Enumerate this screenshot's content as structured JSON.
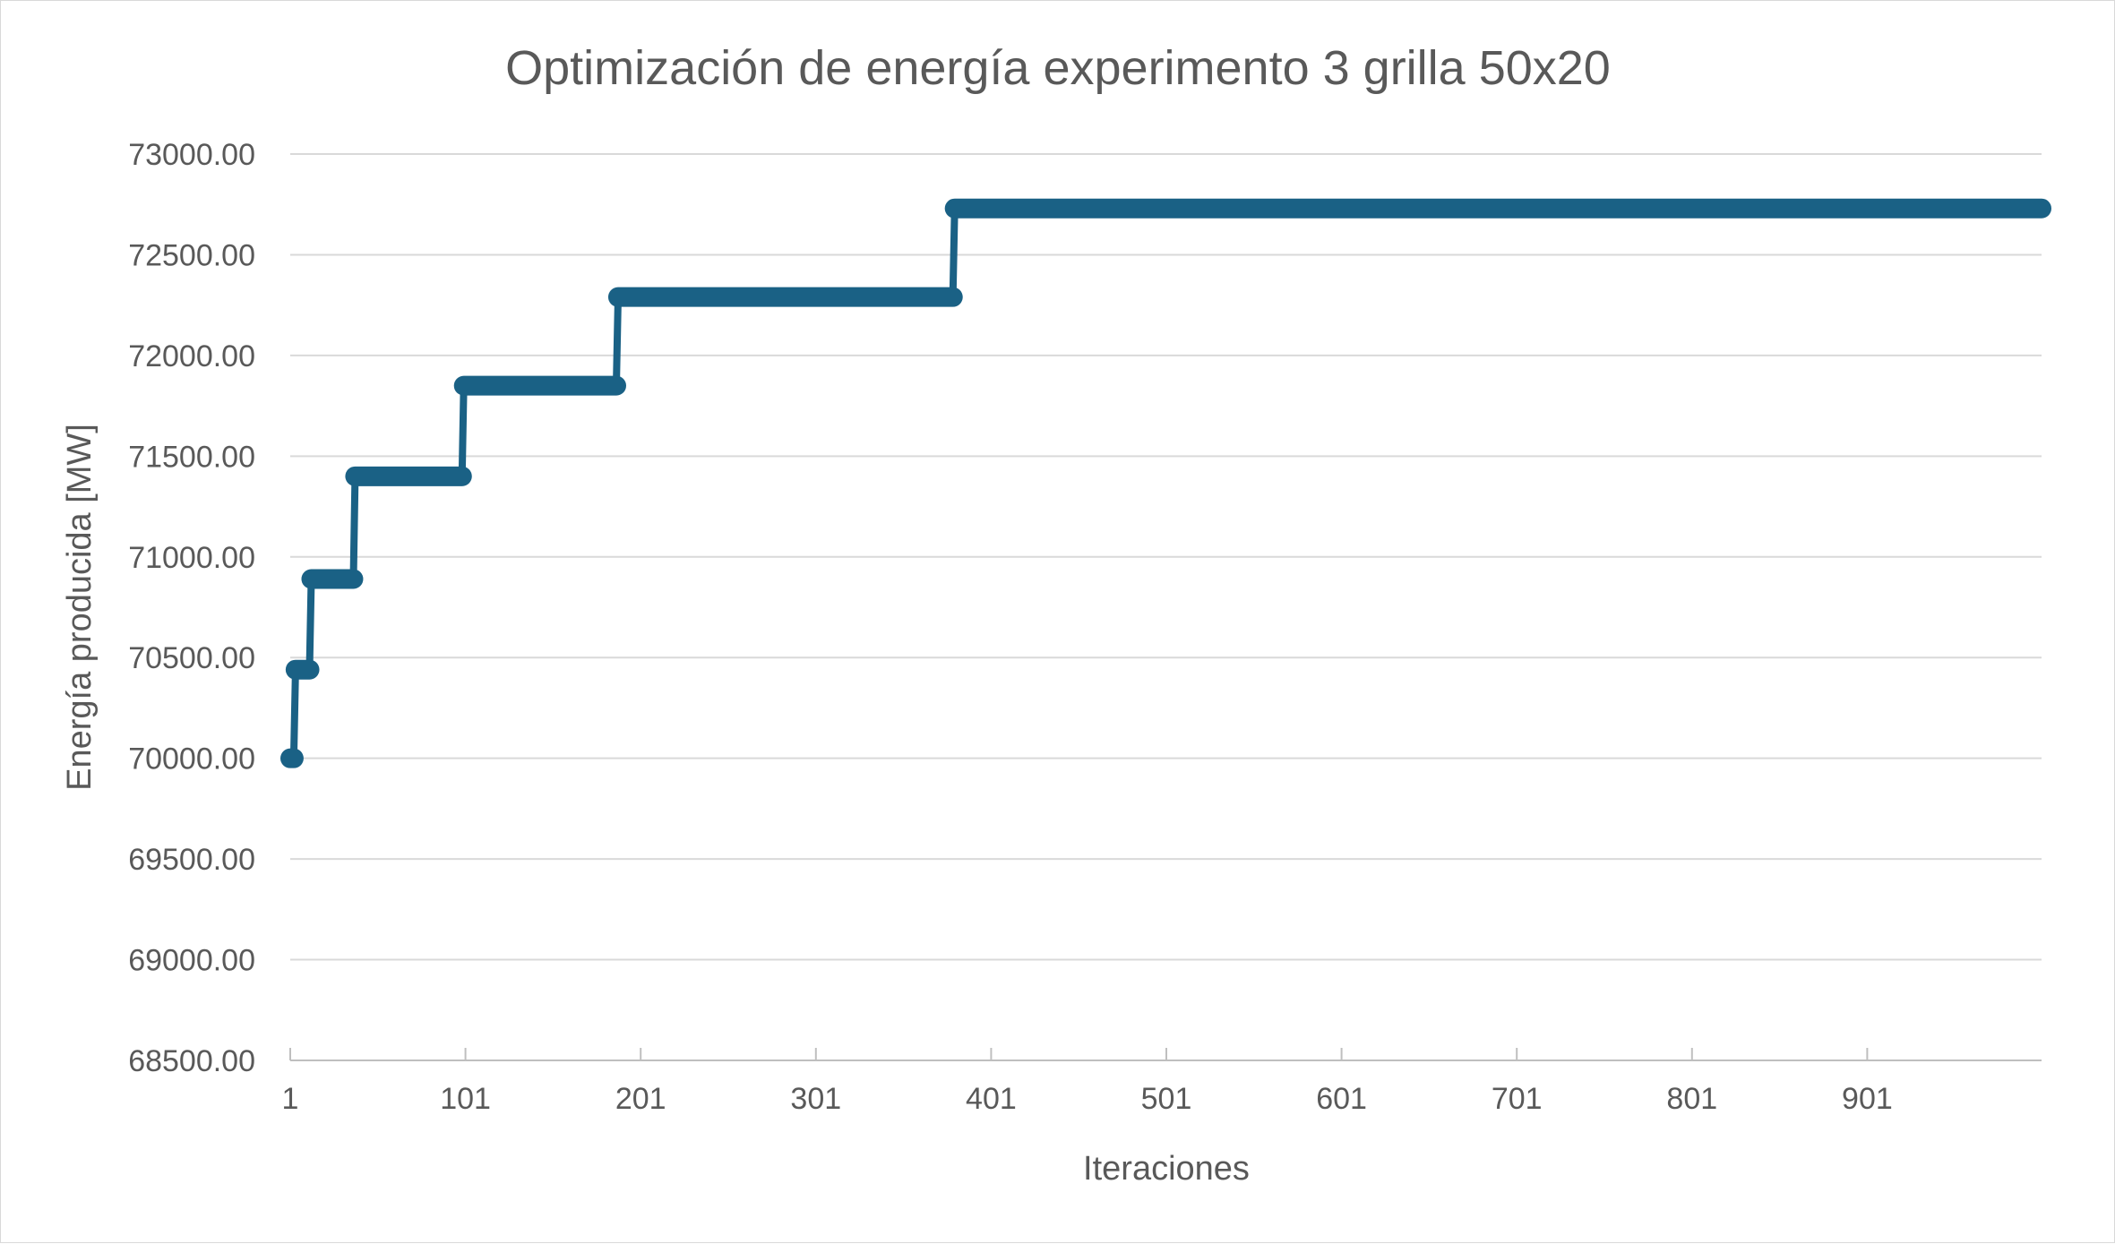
{
  "chart_data": {
    "type": "line",
    "title": "Optimización de energía experimento 3 grilla 50x20",
    "xlabel": "Iteraciones",
    "ylabel": "Energía producida [MW]",
    "ylim": [
      68500,
      73000
    ],
    "xlim": [
      1,
      1000
    ],
    "yticks": [
      "68500.00",
      "69000.00",
      "69500.00",
      "70000.00",
      "70500.00",
      "71000.00",
      "71500.00",
      "72000.00",
      "72500.00",
      "73000.00"
    ],
    "ytick_values": [
      68500,
      69000,
      69500,
      70000,
      70500,
      71000,
      71500,
      72000,
      72500,
      73000
    ],
    "xticks": [
      "1",
      "101",
      "201",
      "301",
      "401",
      "501",
      "601",
      "701",
      "801",
      "901"
    ],
    "xtick_values": [
      1,
      101,
      201,
      301,
      401,
      501,
      601,
      701,
      801,
      901
    ],
    "grid": true,
    "legend": "none",
    "color": "#1a6185",
    "series": [
      {
        "x": [
          1,
          3,
          4,
          12,
          13,
          37,
          38,
          99,
          100,
          187,
          188,
          379,
          380,
          1000
        ],
        "y": [
          70000,
          70000,
          70440,
          70440,
          70890,
          70890,
          71400,
          71400,
          71850,
          71850,
          72290,
          72290,
          72730,
          72730
        ]
      }
    ]
  }
}
